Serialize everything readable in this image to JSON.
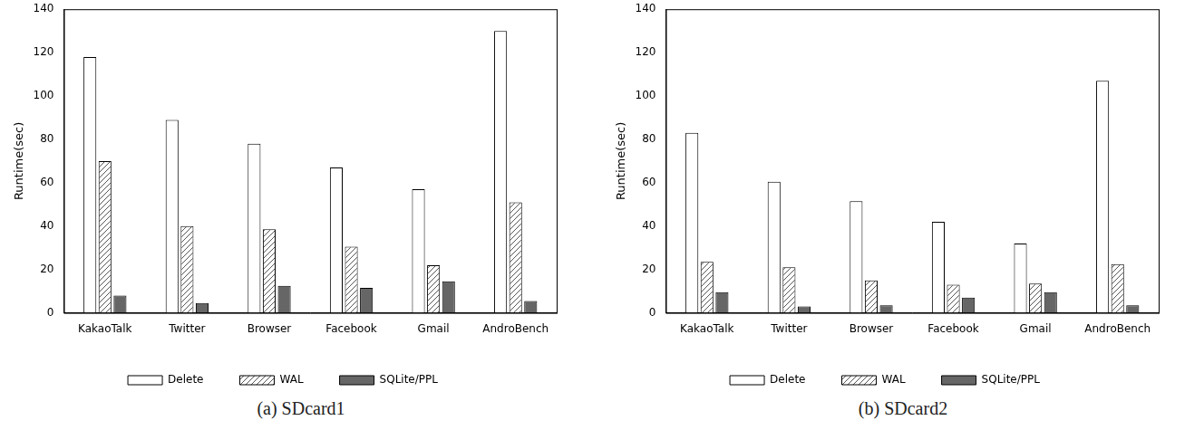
{
  "chart_data": [
    {
      "type": "bar",
      "title": "(a) SDcard1",
      "y_label": "Runtime(sec)",
      "categories": [
        "KakaoTalk",
        "Twitter",
        "Browser",
        "Facebook",
        "Gmail",
        "AndroBench"
      ],
      "series": [
        {
          "name": "Delete",
          "color": "#ffffff",
          "values": [
            118,
            89,
            78,
            67,
            57,
            130
          ]
        },
        {
          "name": "WAL",
          "color": "#555555",
          "marker": "hatch",
          "values": [
            70,
            40,
            38.5,
            30.5,
            22,
            51
          ]
        },
        {
          "name": "SQLite/PPL",
          "color": "#666666",
          "values": [
            8,
            4.5,
            12.5,
            11.5,
            14.5,
            5.5
          ]
        }
      ],
      "ylim": [
        0,
        140
      ],
      "yticks": [
        0,
        20,
        40,
        60,
        80,
        100,
        120,
        140
      ],
      "grid": false,
      "legend": "bottom"
    },
    {
      "type": "bar",
      "title": "(b) SDcard2",
      "y_label": "Runtime(sec)",
      "categories": [
        "KakaoTalk",
        "Twitter",
        "Browser",
        "Facebook",
        "Gmail",
        "AndroBench"
      ],
      "series": [
        {
          "name": "Delete",
          "color": "#ffffff",
          "values": [
            83,
            60.5,
            51.5,
            42,
            32,
            107
          ]
        },
        {
          "name": "WAL",
          "color": "#555555",
          "marker": "hatch",
          "values": [
            23.5,
            21,
            15,
            13,
            13.5,
            22.5
          ]
        },
        {
          "name": "SQLite/PPL",
          "color": "#666666",
          "values": [
            9.5,
            3,
            3.5,
            7,
            9.5,
            3.5
          ]
        }
      ],
      "ylim": [
        0,
        140
      ],
      "yticks": [
        0,
        20,
        40,
        60,
        80,
        100,
        120,
        140
      ],
      "grid": false,
      "legend": "bottom"
    }
  ]
}
